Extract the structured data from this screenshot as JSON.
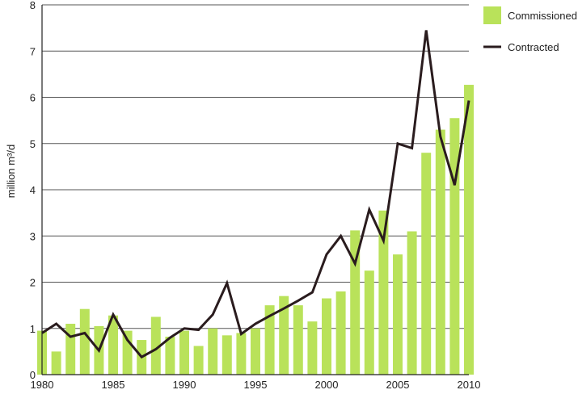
{
  "chart_data": {
    "type": "bar",
    "title": "",
    "xlabel": "",
    "ylabel": "million m³/d",
    "xlim": [
      1980,
      2010
    ],
    "ylim": [
      0,
      8
    ],
    "yticks": [
      0,
      1,
      2,
      3,
      4,
      5,
      6,
      7,
      8
    ],
    "xticks": [
      1980,
      1985,
      1990,
      1995,
      2000,
      2005,
      2010
    ],
    "grid": "horizontal",
    "legend_position": "top-right",
    "x": [
      1980,
      1981,
      1982,
      1983,
      1984,
      1985,
      1986,
      1987,
      1988,
      1989,
      1990,
      1991,
      1992,
      1993,
      1994,
      1995,
      1996,
      1997,
      1998,
      1999,
      2000,
      2001,
      2002,
      2003,
      2004,
      2005,
      2006,
      2007,
      2008,
      2009,
      2010
    ],
    "series": [
      {
        "name": "Commissioned",
        "type": "bar",
        "color": "#b9e25a",
        "values": [
          0.95,
          0.5,
          1.1,
          1.42,
          1.05,
          1.28,
          0.95,
          0.75,
          1.25,
          0.82,
          0.95,
          0.62,
          1.0,
          0.85,
          0.9,
          1.0,
          1.5,
          1.7,
          1.5,
          1.15,
          1.65,
          1.8,
          3.12,
          2.25,
          3.55,
          2.6,
          3.1,
          4.8,
          5.3,
          5.55,
          6.27
        ]
      },
      {
        "name": "Contracted",
        "type": "line",
        "color": "#2a1c1e",
        "values": [
          0.9,
          1.1,
          0.82,
          0.9,
          0.52,
          1.3,
          0.75,
          0.38,
          0.55,
          0.8,
          1.0,
          0.97,
          1.3,
          1.98,
          0.88,
          1.1,
          1.27,
          1.43,
          1.6,
          1.78,
          2.6,
          3.0,
          2.4,
          3.57,
          2.9,
          5.0,
          4.9,
          7.45,
          5.15,
          4.1,
          5.93
        ]
      }
    ]
  }
}
